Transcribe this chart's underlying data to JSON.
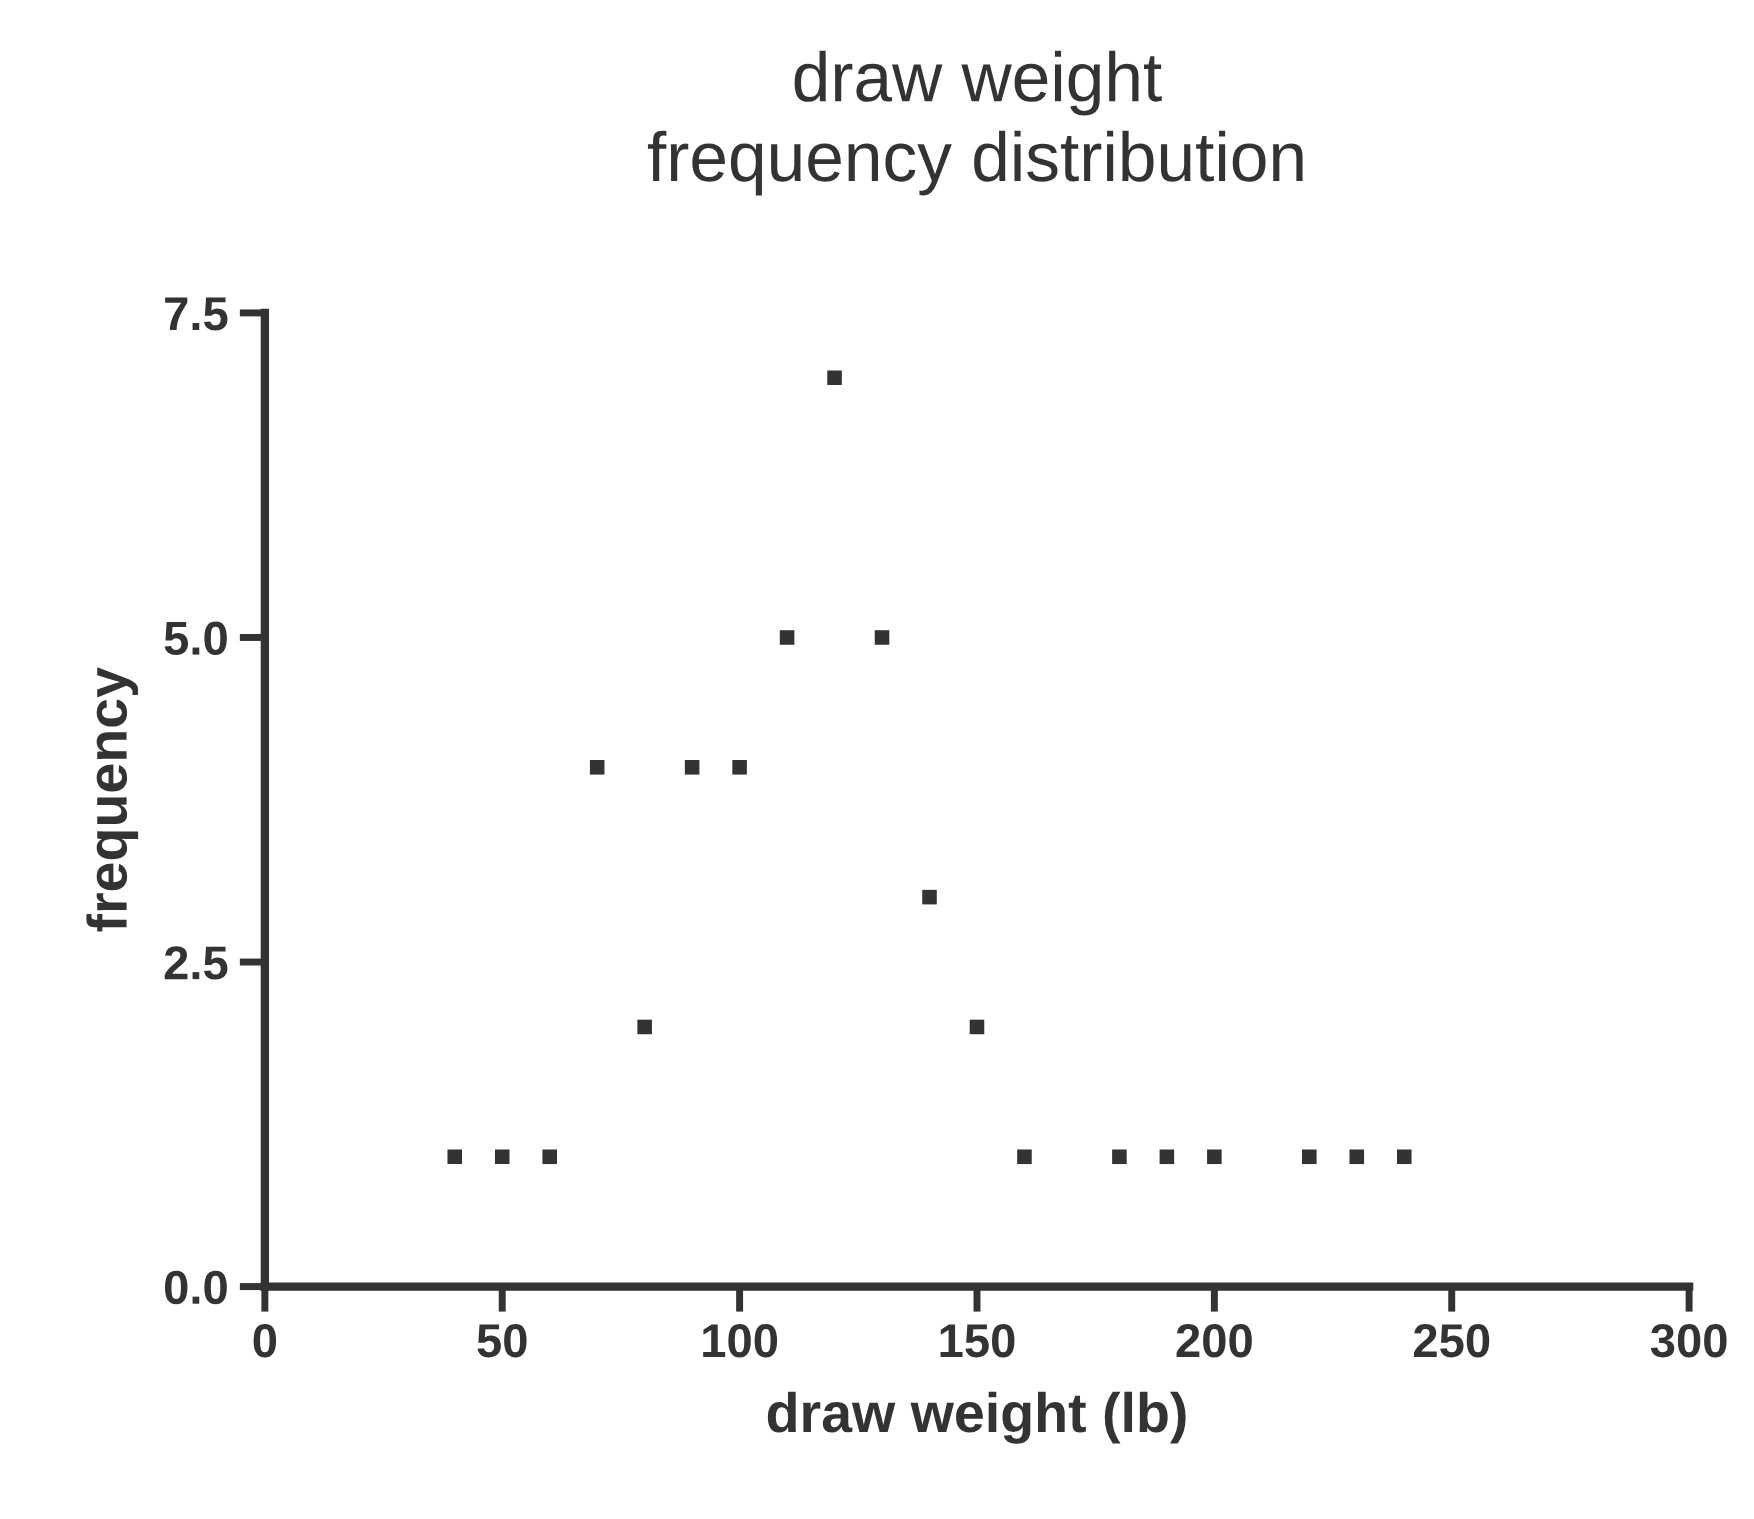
{
  "chart_data": {
    "type": "scatter",
    "title": "draw weight\nfrequency distribution",
    "xlabel": "draw weight (lb)",
    "ylabel": "frequency",
    "x": [
      40,
      50,
      60,
      70,
      80,
      90,
      100,
      110,
      120,
      130,
      140,
      150,
      160,
      180,
      190,
      200,
      220,
      230,
      240
    ],
    "series": [
      {
        "color": "#333333",
        "values": [
          1,
          1,
          1,
          4,
          2,
          4,
          4,
          5,
          7,
          5,
          3,
          2,
          1,
          1,
          1,
          1,
          1,
          1,
          1
        ]
      }
    ],
    "xlim": [
      0,
      300
    ],
    "xticks": [
      0,
      50,
      100,
      150,
      200,
      250,
      300
    ],
    "ylim": [
      0,
      7.5
    ],
    "yticks": [
      {
        "value": 0,
        "label": "0.0"
      },
      {
        "value": 2.5,
        "label": "2.5"
      },
      {
        "value": 5,
        "label": "5.0"
      },
      {
        "value": 7.5,
        "label": "7.5"
      }
    ],
    "marker": "square",
    "grid": false,
    "legend": false
  }
}
